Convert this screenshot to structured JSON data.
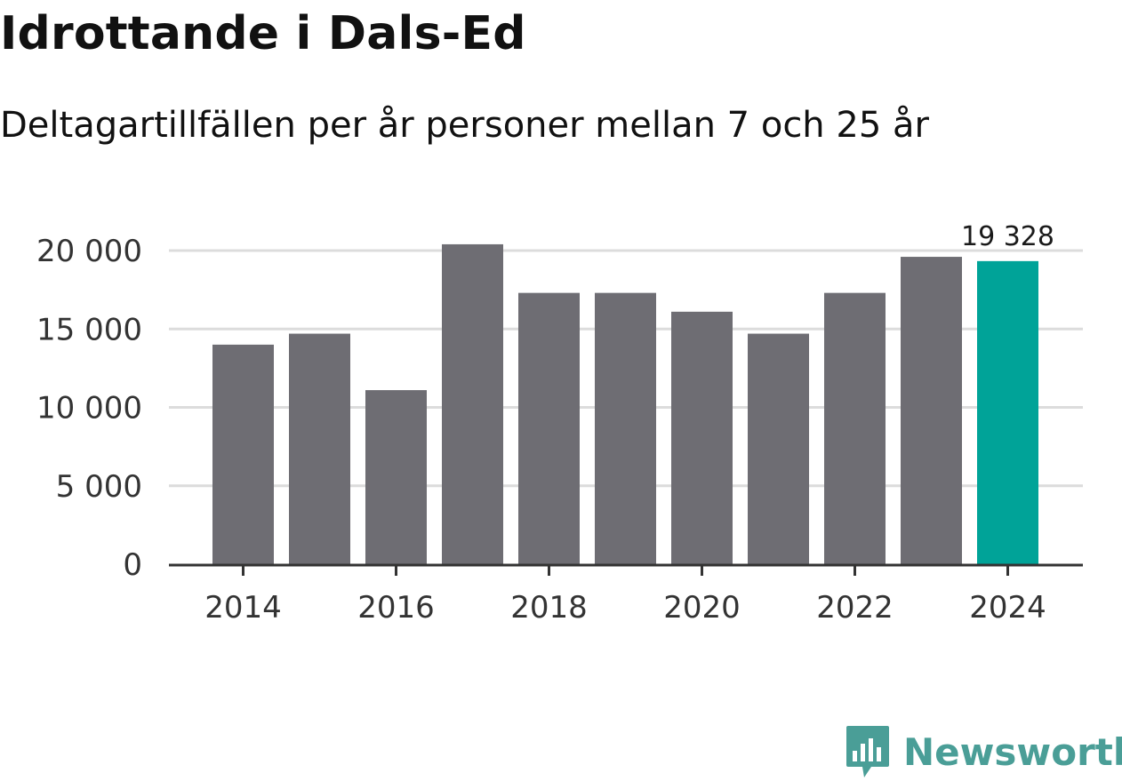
{
  "header": {
    "title": "Idrottande i Dals-Ed",
    "subtitle": "Deltagartillfällen per år personer mellan 7 och 25 år"
  },
  "brand": {
    "name": "Newsworthy",
    "color": "#4a9e97"
  },
  "colors": {
    "bar": "#6e6d73",
    "highlight": "#00a398",
    "grid": "#dcdcdc",
    "axis": "#333333"
  },
  "chart_data": {
    "type": "bar",
    "title": "Idrottande i Dals-Ed",
    "subtitle": "Deltagartillfällen per år personer mellan 7 och 25 år",
    "xlabel": "",
    "ylabel": "",
    "categories": [
      "2014",
      "2015",
      "2016",
      "2017",
      "2018",
      "2019",
      "2020",
      "2021",
      "2022",
      "2023",
      "2024"
    ],
    "values": [
      14000,
      14700,
      11100,
      20400,
      17300,
      17300,
      16100,
      14700,
      17300,
      19600,
      19328
    ],
    "highlight_index": 10,
    "data_labels": [
      {
        "index": 10,
        "text": "19 328"
      }
    ],
    "ylim": [
      0,
      20000
    ],
    "yticks": [
      0,
      5000,
      10000,
      15000,
      20000
    ],
    "ytick_labels": [
      "0",
      "5 000",
      "10 000",
      "15 000",
      "20 000"
    ],
    "xtick_labels": [
      "2014",
      "2016",
      "2018",
      "2020",
      "2022",
      "2024"
    ],
    "grid": true,
    "legend": "none"
  }
}
